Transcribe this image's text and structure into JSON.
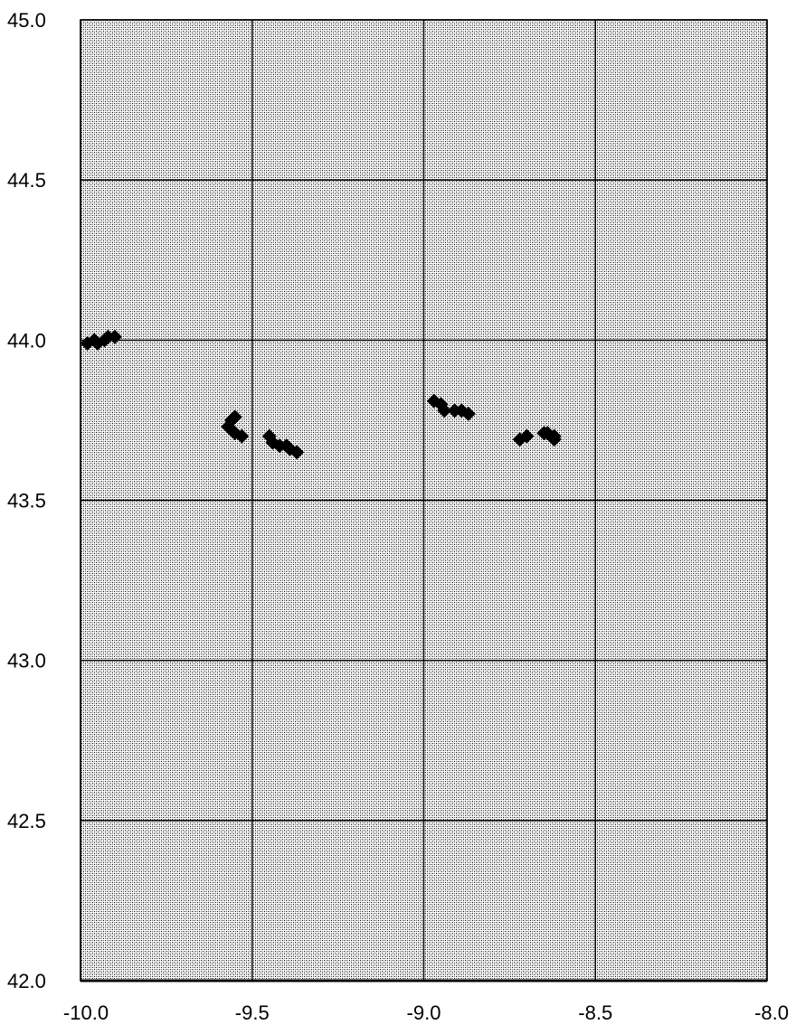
{
  "chart_data": {
    "type": "scatter",
    "title": "",
    "xlabel": "",
    "ylabel": "",
    "xlim": [
      -10.0,
      -8.0
    ],
    "ylim": [
      42.0,
      45.0
    ],
    "grid": true,
    "x_ticks": [
      -10.0,
      -9.5,
      -9.0,
      -8.5,
      -8.0
    ],
    "x_tick_labels": [
      "-10.0",
      "-9.5",
      "-9.0",
      "-8.5",
      "-8.0"
    ],
    "y_ticks": [
      42.0,
      42.5,
      43.0,
      43.5,
      44.0,
      44.5,
      45.0
    ],
    "y_tick_labels": [
      "42.0",
      "42.5",
      "43.0",
      "43.5",
      "44.0",
      "44.5",
      "45.0"
    ],
    "marker": "diamond",
    "marker_color": "#000000",
    "plot_background": "stippled gray",
    "series": [
      {
        "x": [
          -9.98,
          -9.96,
          -9.95,
          -9.93,
          -9.92,
          -9.9,
          -9.57,
          -9.56,
          -9.55,
          -9.56,
          -9.55,
          -9.53,
          -9.45,
          -9.44,
          -9.42,
          -9.4,
          -9.39,
          -9.37,
          -8.97,
          -8.95,
          -8.94,
          -8.91,
          -8.89,
          -8.87,
          -8.72,
          -8.7,
          -8.65,
          -8.64,
          -8.62,
          -8.62
        ],
        "y": [
          43.99,
          44.0,
          43.99,
          44.0,
          44.01,
          44.01,
          43.73,
          43.75,
          43.76,
          43.72,
          43.71,
          43.7,
          43.7,
          43.68,
          43.67,
          43.67,
          43.66,
          43.65,
          43.81,
          43.8,
          43.78,
          43.78,
          43.78,
          43.77,
          43.69,
          43.7,
          43.71,
          43.71,
          43.7,
          43.69
        ]
      }
    ]
  }
}
